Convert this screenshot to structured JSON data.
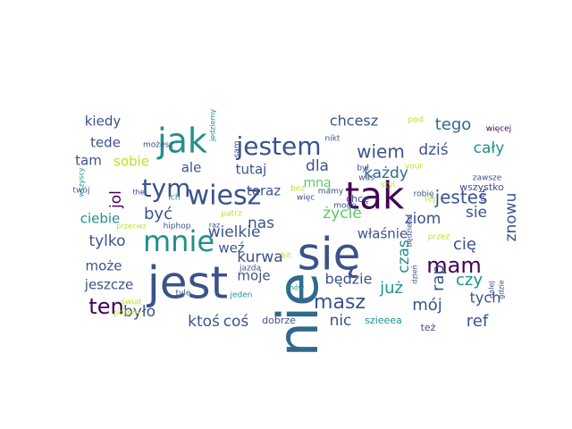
{
  "colors": {
    "purple": "#440154",
    "indigo": "#3b528b",
    "teal": "#21908c",
    "green": "#5ec962",
    "yellow": "#bddf26",
    "slate": "#31688e"
  },
  "words": [
    {
      "text": "nie",
      "color": "#31688e",
      "rotated": true
    },
    {
      "text": "się",
      "color": "#3b528b",
      "rotated": false
    },
    {
      "text": "jest",
      "color": "#3b528b",
      "rotated": false
    },
    {
      "text": "tak",
      "color": "#440154",
      "rotated": false
    },
    {
      "text": "jak",
      "color": "#21908c",
      "rotated": false
    },
    {
      "text": "mnie",
      "color": "#21908c",
      "rotated": false
    },
    {
      "text": "wiesz",
      "color": "#3b528b",
      "rotated": false
    },
    {
      "text": "tym",
      "color": "#3b528b",
      "rotated": false
    },
    {
      "text": "jestem",
      "color": "#3b528b",
      "rotated": false
    },
    {
      "text": "mam",
      "color": "#440154",
      "rotated": false
    },
    {
      "text": "ten",
      "color": "#440154",
      "rotated": false
    },
    {
      "text": "masz",
      "color": "#3b528b",
      "rotated": false
    },
    {
      "text": "jesteś",
      "color": "#3b528b",
      "rotated": false
    },
    {
      "text": "wiem",
      "color": "#3b528b",
      "rotated": false
    },
    {
      "text": "tego",
      "color": "#31688e",
      "rotated": false
    },
    {
      "text": "chcesz",
      "color": "#3b528b",
      "rotated": false
    },
    {
      "text": "kiedy",
      "color": "#3b528b",
      "rotated": false
    },
    {
      "text": "tede",
      "color": "#3b528b",
      "rotated": false
    },
    {
      "text": "tam",
      "color": "#3b528b",
      "rotated": false
    },
    {
      "text": "sobie",
      "color": "#bddf26",
      "rotated": false
    },
    {
      "text": "ale",
      "color": "#3b528b",
      "rotated": false
    },
    {
      "text": "tutaj",
      "color": "#3b528b",
      "rotated": false
    },
    {
      "text": "teraz",
      "color": "#3b528b",
      "rotated": false
    },
    {
      "text": "dla",
      "color": "#3b528b",
      "rotated": false
    },
    {
      "text": "każdy",
      "color": "#31688e",
      "rotated": false
    },
    {
      "text": "dziś",
      "color": "#3b528b",
      "rotated": false
    },
    {
      "text": "cały",
      "color": "#21908c",
      "rotated": false
    },
    {
      "text": "jol",
      "color": "#440154",
      "rotated": true
    },
    {
      "text": "ciebie",
      "color": "#21908c",
      "rotated": false
    },
    {
      "text": "być",
      "color": "#3b528b",
      "rotated": false
    },
    {
      "text": "wielkie",
      "color": "#3b528b",
      "rotated": false
    },
    {
      "text": "mną",
      "color": "#5ec962",
      "rotated": false
    },
    {
      "text": "nas",
      "color": "#3b528b",
      "rotated": false
    },
    {
      "text": "życie",
      "color": "#5ec962",
      "rotated": false
    },
    {
      "text": "ziom",
      "color": "#3b528b",
      "rotated": false
    },
    {
      "text": "sie",
      "color": "#3b528b",
      "rotated": false
    },
    {
      "text": "znowu",
      "color": "#3b528b",
      "rotated": true
    },
    {
      "text": "tylko",
      "color": "#3b528b",
      "rotated": false
    },
    {
      "text": "weź",
      "color": "#3b528b",
      "rotated": false
    },
    {
      "text": "kurwa",
      "color": "#3b528b",
      "rotated": false
    },
    {
      "text": "czas",
      "color": "#21908c",
      "rotated": true
    },
    {
      "text": "właśnie",
      "color": "#3b528b",
      "rotated": false
    },
    {
      "text": "cię",
      "color": "#3b528b",
      "rotated": false
    },
    {
      "text": "może",
      "color": "#3b528b",
      "rotated": false
    },
    {
      "text": "rap",
      "color": "#3b528b",
      "rotated": true
    },
    {
      "text": "czy",
      "color": "#21908c",
      "rotated": false
    },
    {
      "text": "moje",
      "color": "#3b528b",
      "rotated": false
    },
    {
      "text": "będzie",
      "color": "#3b528b",
      "rotated": false
    },
    {
      "text": "jeszcze",
      "color": "#3b528b",
      "rotated": false
    },
    {
      "text": "już",
      "color": "#21908c",
      "rotated": false
    },
    {
      "text": "mój",
      "color": "#3b528b",
      "rotated": false
    },
    {
      "text": "tych",
      "color": "#3b528b",
      "rotated": false
    },
    {
      "text": "było",
      "color": "#3b528b",
      "rotated": false
    },
    {
      "text": "ktoś",
      "color": "#3b528b",
      "rotated": false
    },
    {
      "text": "coś",
      "color": "#3b528b",
      "rotated": false
    },
    {
      "text": "nic",
      "color": "#3b528b",
      "rotated": false
    },
    {
      "text": "ref",
      "color": "#3b528b",
      "rotated": false
    },
    {
      "text": "dobrze",
      "color": "#3b528b",
      "rotated": false
    },
    {
      "text": "szieeea",
      "color": "#21908c",
      "rotated": false
    },
    {
      "text": "też",
      "color": "#3b528b",
      "rotated": false
    },
    {
      "text": "wszystko",
      "color": "#3b528b",
      "rotated": false
    },
    {
      "text": "robię",
      "color": "#3b528b",
      "rotated": false
    },
    {
      "text": "chcę",
      "color": "#3b528b",
      "rotated": false
    },
    {
      "text": "mogę",
      "color": "#3b528b",
      "rotated": false
    },
    {
      "text": "więc",
      "color": "#3b528b",
      "rotated": false
    },
    {
      "text": "mamy",
      "color": "#3b528b",
      "rotated": false
    },
    {
      "text": "bez",
      "color": "#bddf26",
      "rotated": false
    },
    {
      "text": "był",
      "color": "#3b528b",
      "rotated": false
    },
    {
      "text": "was",
      "color": "#3b528b",
      "rotated": false
    },
    {
      "text": "your",
      "color": "#bddf26",
      "rotated": false
    },
    {
      "text": "pod",
      "color": "#bddf26",
      "rotated": false
    },
    {
      "text": "zawsze",
      "color": "#3b528b",
      "rotated": false
    },
    {
      "text": "styl",
      "color": "#bddf26",
      "rotated": false
    },
    {
      "text": "więcej",
      "color": "#440154",
      "rotated": false
    },
    {
      "text": "nikt",
      "color": "#3b528b",
      "rotated": false
    },
    {
      "text": "sam",
      "color": "#3b528b",
      "rotated": true
    },
    {
      "text": "jedziemy",
      "color": "#21908c",
      "rotated": true
    },
    {
      "text": "możesz",
      "color": "#3b528b",
      "rotated": false
    },
    {
      "text": "wszyscy",
      "color": "#21908c",
      "rotated": true
    },
    {
      "text": "twój",
      "color": "#3b528b",
      "rotated": false
    },
    {
      "text": "the",
      "color": "#3b528b",
      "rotated": false
    },
    {
      "text": "ich",
      "color": "#21908c",
      "rotated": false
    },
    {
      "text": "patrz",
      "color": "#bddf26",
      "rotated": false
    },
    {
      "text": "przecież",
      "color": "#bddf26",
      "rotated": false
    },
    {
      "text": "hiphop",
      "color": "#3b528b",
      "rotated": false
    },
    {
      "text": "raz",
      "color": "#3b528b",
      "rotated": false
    },
    {
      "text": "bit",
      "color": "#bddf26",
      "rotated": false
    },
    {
      "text": "jazda",
      "color": "#3b528b",
      "rotated": false
    },
    {
      "text": "świat",
      "color": "#bddf26",
      "rotated": false
    },
    {
      "text": "tyle",
      "color": "#3b528b",
      "rotated": false
    },
    {
      "text": "jeden",
      "color": "#21908c",
      "rotated": false
    },
    {
      "text": "znów",
      "color": "#21908c",
      "rotated": false
    },
    {
      "text": "potem",
      "color": "#bddf26",
      "rotated": false
    },
    {
      "text": "tej",
      "color": "#bddf26",
      "rotated": false
    },
    {
      "text": "przez",
      "color": "#bddf26",
      "rotated": false
    },
    {
      "text": "będziesz",
      "color": "#3b528b",
      "rotated": true
    },
    {
      "text": "dzień",
      "color": "#3b528b",
      "rotated": true
    },
    {
      "text": "dalej",
      "color": "#3b528b",
      "rotated": true
    },
    {
      "text": "gdzie",
      "color": "#3b528b",
      "rotated": true
    },
    {
      "text": "robi",
      "color": "#3b528b",
      "rotated": true
    }
  ]
}
